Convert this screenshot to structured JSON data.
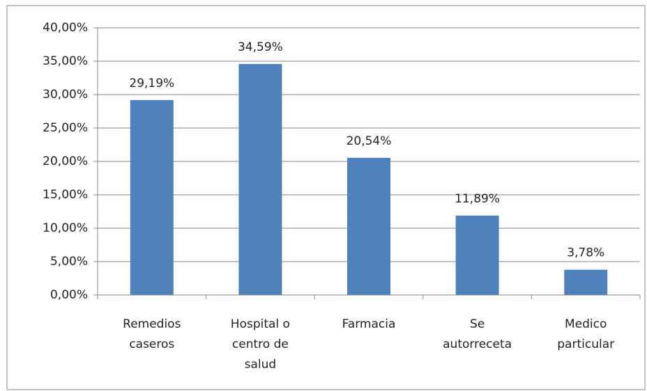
{
  "chart_data": {
    "type": "bar",
    "categories": [
      "Remedios caseros",
      "Hospital o centro de salud",
      "Farmacia",
      "Se autorreceta",
      "Medico particular"
    ],
    "values": [
      29.19,
      34.59,
      20.54,
      11.89,
      3.78
    ],
    "value_labels": [
      "29,19%",
      "34,59%",
      "20,54%",
      "11,89%",
      "3,78%"
    ],
    "color": "#4f81bd",
    "ylim": [
      0,
      40
    ],
    "yticks": [
      {
        "value": 0,
        "label": "0,00%"
      },
      {
        "value": 5,
        "label": "5,00%"
      },
      {
        "value": 10,
        "label": "10,00%"
      },
      {
        "value": 15,
        "label": "15,00%"
      },
      {
        "value": 20,
        "label": "20,00%"
      },
      {
        "value": 25,
        "label": "25,00%"
      },
      {
        "value": 30,
        "label": "30,00%"
      },
      {
        "value": 35,
        "label": "35,00%"
      },
      {
        "value": 40,
        "label": "40,00%"
      }
    ],
    "grid": true
  }
}
